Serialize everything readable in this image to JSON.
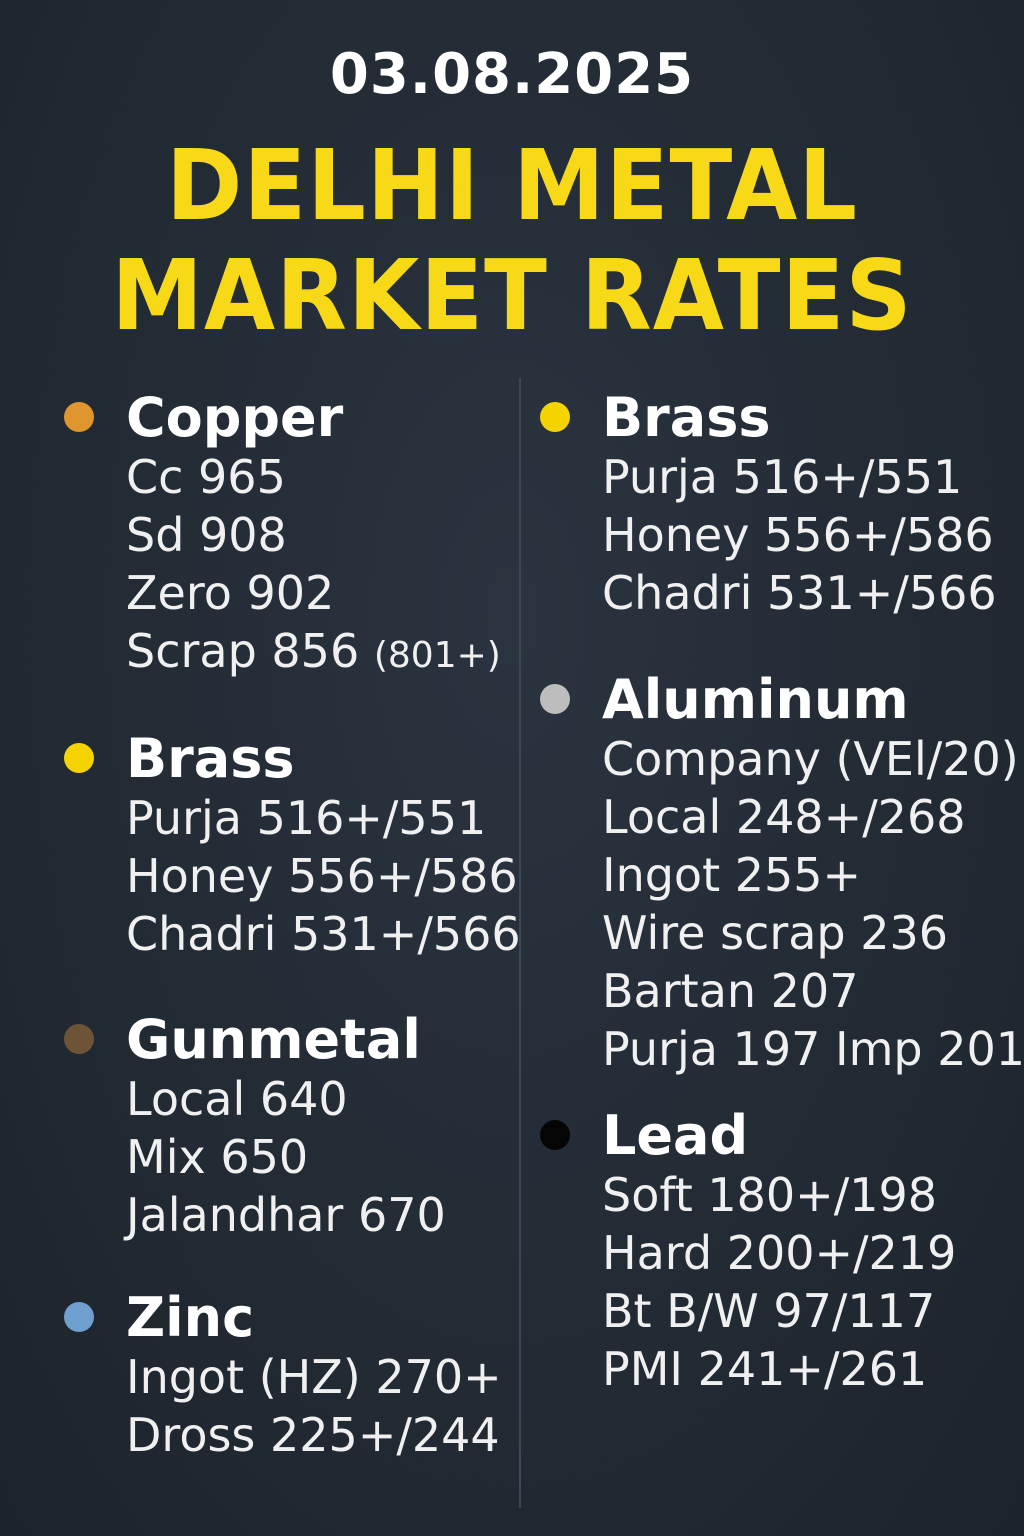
{
  "date": "03.08.2025",
  "title_line1": "DELHI METAL",
  "title_line2": "MARKET RATES",
  "groups": [
    {
      "name": "Copper",
      "color": "#e0962e",
      "items": [
        "Cc 965",
        "Sd 908",
        "Zero 902",
        "Scrap 856"
      ],
      "extra": "(801+)"
    },
    {
      "name": "Brass",
      "color": "#f5d300",
      "items": [
        "Purja 516+/551",
        "Honey 556+/586",
        "Chadri 531+/566"
      ]
    },
    {
      "name": "Gunmetal",
      "color": "#6e5436",
      "items": [
        "Local 640",
        "Mix 650",
        "Jalandhar 670"
      ]
    },
    {
      "name": "Zinc",
      "color": "#6f9fcf",
      "items": [
        "Ingot (HZ) 270+",
        "Dross 225+/244"
      ]
    },
    {
      "name": "Brass",
      "color": "#f5d300",
      "items": [
        "Purja 516+/551",
        "Honey 556+/586",
        "Chadri 531+/566"
      ]
    },
    {
      "name": "Aluminum",
      "color": "#bdbdbd",
      "items": [
        "Company (VEl/20)",
        "Local 248+/268",
        "Ingot 255+",
        "Wire scrap 236",
        "Bartan 207",
        "Purja 197 Imp 201"
      ]
    },
    {
      "name": "Lead",
      "color": "#050505",
      "items": [
        "Soft 180+/198",
        "Hard 200+/219",
        "Bt B/W 97/117",
        "PMI 241+/261"
      ]
    }
  ]
}
